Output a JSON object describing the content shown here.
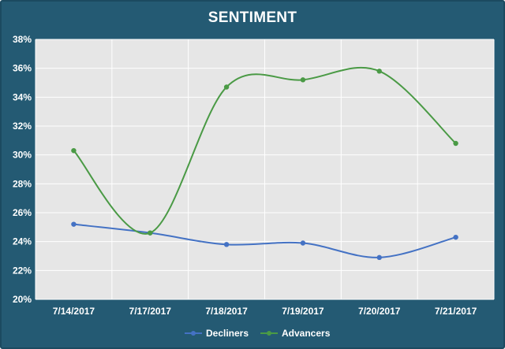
{
  "chart_data": {
    "type": "line",
    "title": "SENTIMENT",
    "categories": [
      "7/14/2017",
      "7/17/2017",
      "7/18/2017",
      "7/19/2017",
      "7/20/2017",
      "7/21/2017"
    ],
    "series": [
      {
        "name": "Decliners",
        "color": "#4472c4",
        "values": [
          25.2,
          24.6,
          23.8,
          23.9,
          22.9,
          24.3
        ]
      },
      {
        "name": "Advancers",
        "color": "#4a9a45",
        "values": [
          30.3,
          24.6,
          34.7,
          35.2,
          35.8,
          30.8
        ]
      }
    ],
    "ylim": [
      20,
      38
    ],
    "yticks": [
      "20%",
      "22%",
      "24%",
      "26%",
      "28%",
      "30%",
      "32%",
      "34%",
      "36%",
      "38%"
    ],
    "grid": true,
    "legend": "bottom",
    "colors": {
      "background": "#245a73",
      "plot_area": "#e6e6e6",
      "gridline": "#ffffff",
      "text": "#ffffff"
    }
  }
}
